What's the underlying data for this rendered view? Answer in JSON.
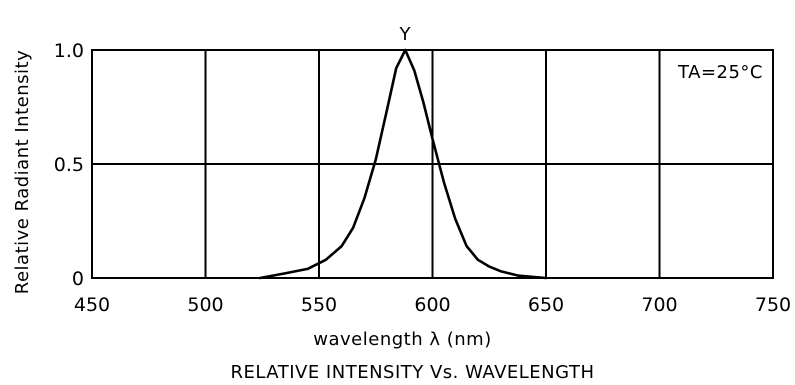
{
  "chart_data": {
    "type": "line",
    "title": "RELATIVE INTENSITY Vs. WAVELENGTH",
    "xlabel": "wavelength λ (nm)",
    "ylabel": "Relative Radiant Intensity",
    "annotation": "TA=25°C",
    "peak_label": "Y",
    "xlim": [
      450,
      750
    ],
    "ylim": [
      0,
      1.0
    ],
    "x_ticks": [
      450,
      500,
      550,
      600,
      650,
      700,
      750
    ],
    "x_tick_labels": [
      "450",
      "500",
      "550",
      "600",
      "650",
      "700",
      "750"
    ],
    "y_ticks": [
      0,
      0.5,
      1.0
    ],
    "y_tick_labels": [
      "0",
      "0.5",
      "1.0"
    ],
    "grid": true,
    "line_color": "#000000",
    "series": [
      {
        "x": [
          524,
          535,
          545,
          553,
          560,
          565,
          570,
          575,
          580,
          584,
          588,
          592,
          596,
          600,
          605,
          610,
          615,
          620,
          625,
          630,
          638,
          650
        ],
        "y": [
          0.0,
          0.02,
          0.04,
          0.08,
          0.14,
          0.22,
          0.35,
          0.52,
          0.74,
          0.92,
          1.0,
          0.91,
          0.77,
          0.61,
          0.42,
          0.26,
          0.14,
          0.08,
          0.05,
          0.03,
          0.01,
          0.0
        ]
      }
    ]
  }
}
